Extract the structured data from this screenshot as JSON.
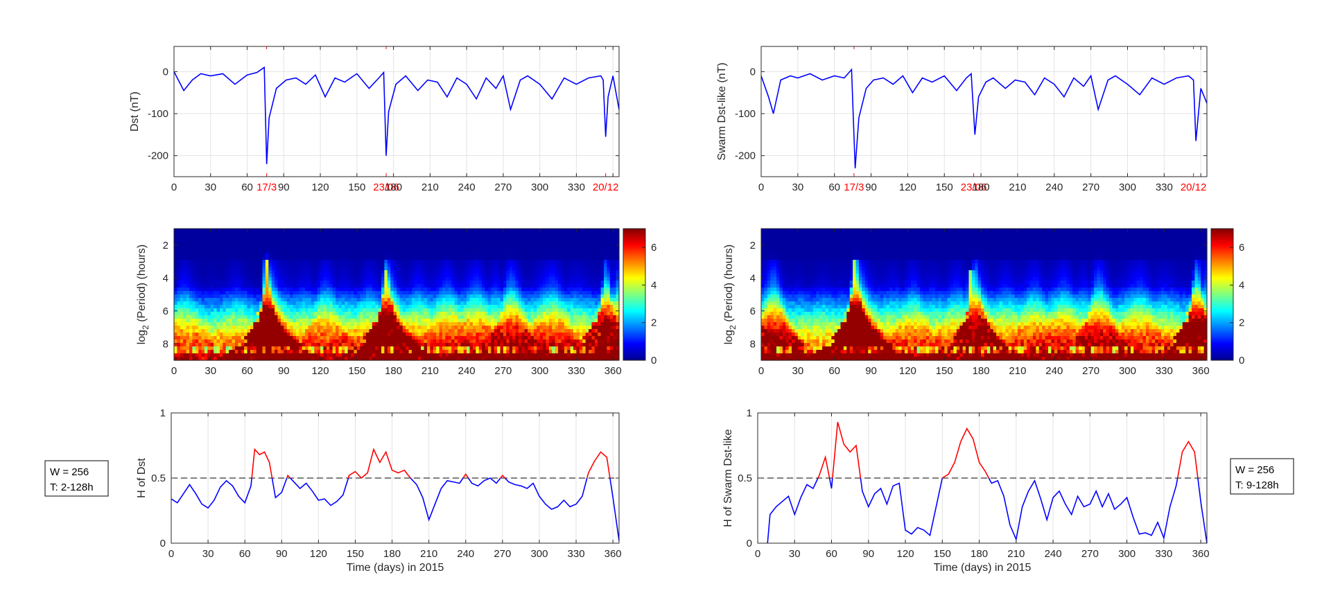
{
  "chart_data": [
    {
      "type": "line",
      "panel": "dst-timeseries",
      "ylabel": "Dst (nT)",
      "xlim": [
        0,
        365
      ],
      "ylim": [
        -250,
        60
      ],
      "xticks": [
        "0",
        "30",
        "60",
        "90",
        "120",
        "150",
        "180",
        "210",
        "240",
        "270",
        "300",
        "330",
        "360"
      ],
      "yticks": [
        "0",
        "-100",
        "-200"
      ],
      "event_labels": [
        "17/3",
        "23/06",
        "20/12"
      ],
      "event_days": [
        76,
        174,
        354
      ],
      "color": "#0000ff",
      "event_color": "#ff0000",
      "series": [
        {
          "x": [
            0,
            8,
            15,
            22,
            30,
            40,
            50,
            60,
            68,
            74,
            76,
            78,
            84,
            92,
            100,
            108,
            116,
            124,
            132,
            140,
            150,
            160,
            168,
            172,
            174,
            176,
            182,
            190,
            200,
            208,
            216,
            224,
            232,
            240,
            248,
            256,
            264,
            270,
            276,
            284,
            290,
            300,
            310,
            320,
            330,
            340,
            350,
            352,
            354,
            356,
            360,
            365
          ],
          "y": [
            0,
            -45,
            -20,
            -5,
            -10,
            -5,
            -30,
            -8,
            -2,
            10,
            -220,
            -110,
            -40,
            -20,
            -15,
            -30,
            -8,
            -60,
            -15,
            -25,
            -5,
            -40,
            -15,
            -2,
            -200,
            -95,
            -30,
            -10,
            -45,
            -20,
            -25,
            -60,
            -15,
            -30,
            -65,
            -15,
            -40,
            -10,
            -90,
            -20,
            -10,
            -30,
            -65,
            -15,
            -30,
            -15,
            -10,
            -20,
            -155,
            -60,
            -10,
            -90
          ]
        }
      ]
    },
    {
      "type": "line",
      "panel": "swarm-timeseries",
      "ylabel": "Swarm Dst-like (nT)",
      "xlim": [
        0,
        365
      ],
      "ylim": [
        -250,
        60
      ],
      "xticks": [
        "0",
        "30",
        "60",
        "90",
        "120",
        "150",
        "180",
        "210",
        "240",
        "270",
        "300",
        "330",
        "360"
      ],
      "yticks": [
        "0",
        "-100",
        "-200"
      ],
      "event_labels": [
        "17/3",
        "23/06",
        "20/12"
      ],
      "event_days": [
        76,
        174,
        354
      ],
      "color": "#0000ff",
      "event_color": "#ff0000",
      "series": [
        {
          "x": [
            0,
            6,
            10,
            16,
            24,
            30,
            40,
            50,
            60,
            68,
            74,
            77,
            80,
            86,
            92,
            100,
            108,
            116,
            124,
            132,
            140,
            150,
            160,
            168,
            172,
            175,
            178,
            184,
            190,
            200,
            208,
            216,
            224,
            232,
            240,
            248,
            256,
            264,
            270,
            276,
            284,
            290,
            300,
            310,
            320,
            330,
            340,
            350,
            354,
            356,
            360,
            365
          ],
          "y": [
            -10,
            -60,
            -100,
            -20,
            -10,
            -15,
            -5,
            -20,
            -10,
            -15,
            5,
            -230,
            -110,
            -40,
            -20,
            -15,
            -30,
            -10,
            -50,
            -15,
            -25,
            -10,
            -45,
            -15,
            -5,
            -150,
            -60,
            -25,
            -15,
            -40,
            -20,
            -25,
            -55,
            -15,
            -30,
            -60,
            -15,
            -35,
            -10,
            -90,
            -20,
            -10,
            -30,
            -55,
            -15,
            -30,
            -15,
            -10,
            -20,
            -165,
            -40,
            -75
          ]
        }
      ]
    },
    {
      "type": "heatmap",
      "panel": "dst-wavelet",
      "ylabel": "log2 (Period) (hours)",
      "xlim": [
        0,
        365
      ],
      "ylim": [
        1,
        9
      ],
      "y_reversed": true,
      "xticks": [
        "0",
        "30",
        "60",
        "90",
        "120",
        "150",
        "180",
        "210",
        "240",
        "270",
        "300",
        "330",
        "360"
      ],
      "yticks": [
        "2",
        "4",
        "6",
        "8"
      ],
      "colorbar_ticks": [
        "0",
        "2",
        "4",
        "6"
      ],
      "colorbar_range": [
        0,
        7
      ],
      "colormap": "jet",
      "storm_peaks": [
        {
          "day": 76,
          "power": 7,
          "min_log2_period": 2.5
        },
        {
          "day": 174,
          "power": 6.5,
          "min_log2_period": 3.5
        },
        {
          "day": 355,
          "power": 6,
          "min_log2_period": 4.5
        }
      ]
    },
    {
      "type": "heatmap",
      "panel": "swarm-wavelet",
      "ylabel": "log2 (Period) (hours)",
      "xlim": [
        0,
        365
      ],
      "ylim": [
        1,
        9
      ],
      "y_reversed": true,
      "xticks": [
        "0",
        "30",
        "60",
        "90",
        "120",
        "150",
        "180",
        "210",
        "240",
        "270",
        "300",
        "330",
        "360"
      ],
      "yticks": [
        "2",
        "4",
        "6",
        "8"
      ],
      "colorbar_ticks": [
        "0",
        "2",
        "4",
        "6"
      ],
      "colorbar_range": [
        0,
        7
      ],
      "colormap": "jet",
      "storm_peaks": [
        {
          "day": 77,
          "power": 7,
          "min_log2_period": 3
        },
        {
          "day": 172,
          "power": 6.5,
          "min_log2_period": 3.5
        },
        {
          "day": 356,
          "power": 6,
          "min_log2_period": 4.5
        }
      ]
    },
    {
      "type": "line",
      "panel": "dst-hurst",
      "ylabel": "H of Dst",
      "xlabel": "Time (days) in 2015",
      "xlim": [
        0,
        365
      ],
      "ylim": [
        0,
        1
      ],
      "xticks": [
        "0",
        "30",
        "60",
        "90",
        "120",
        "150",
        "180",
        "210",
        "240",
        "270",
        "300",
        "330",
        "360"
      ],
      "yticks": [
        "0",
        "0.5",
        "1"
      ],
      "threshold": 0.5,
      "below_color": "#0000ff",
      "above_color": "#ff0000",
      "series": [
        {
          "x": [
            0,
            5,
            10,
            15,
            20,
            25,
            30,
            35,
            40,
            45,
            50,
            55,
            60,
            65,
            68,
            72,
            76,
            80,
            85,
            90,
            95,
            100,
            105,
            110,
            115,
            120,
            125,
            130,
            135,
            140,
            145,
            150,
            155,
            160,
            165,
            170,
            175,
            180,
            185,
            190,
            195,
            200,
            205,
            210,
            215,
            220,
            225,
            230,
            235,
            240,
            245,
            250,
            255,
            260,
            265,
            270,
            275,
            280,
            285,
            290,
            295,
            300,
            305,
            310,
            315,
            320,
            325,
            330,
            335,
            340,
            345,
            350,
            355,
            360,
            365
          ],
          "y": [
            0.34,
            0.31,
            0.38,
            0.45,
            0.38,
            0.3,
            0.27,
            0.33,
            0.43,
            0.48,
            0.44,
            0.36,
            0.31,
            0.44,
            0.72,
            0.68,
            0.7,
            0.62,
            0.35,
            0.39,
            0.52,
            0.47,
            0.42,
            0.46,
            0.4,
            0.33,
            0.34,
            0.29,
            0.32,
            0.37,
            0.52,
            0.55,
            0.5,
            0.54,
            0.72,
            0.62,
            0.7,
            0.56,
            0.54,
            0.56,
            0.5,
            0.45,
            0.35,
            0.18,
            0.3,
            0.42,
            0.48,
            0.47,
            0.46,
            0.53,
            0.46,
            0.44,
            0.48,
            0.5,
            0.46,
            0.52,
            0.47,
            0.45,
            0.44,
            0.42,
            0.46,
            0.36,
            0.3,
            0.26,
            0.28,
            0.33,
            0.28,
            0.3,
            0.36,
            0.54,
            0.63,
            0.7,
            0.66,
            0.35,
            0.02
          ]
        }
      ]
    },
    {
      "type": "line",
      "panel": "swarm-hurst",
      "ylabel": "H of Swarm Dst-like",
      "xlabel": "Time (days) in 2015",
      "xlim": [
        0,
        365
      ],
      "ylim": [
        0,
        1
      ],
      "xticks": [
        "0",
        "30",
        "60",
        "90",
        "120",
        "150",
        "180",
        "210",
        "240",
        "270",
        "300",
        "330",
        "360"
      ],
      "yticks": [
        "0",
        "0.5",
        "1"
      ],
      "threshold": 0.5,
      "below_color": "#0000ff",
      "above_color": "#ff0000",
      "series": [
        {
          "x": [
            8,
            10,
            15,
            20,
            25,
            30,
            35,
            40,
            45,
            50,
            55,
            60,
            65,
            70,
            75,
            80,
            85,
            90,
            95,
            100,
            105,
            110,
            115,
            120,
            125,
            130,
            135,
            140,
            145,
            150,
            155,
            160,
            165,
            170,
            175,
            180,
            185,
            190,
            195,
            200,
            205,
            210,
            215,
            220,
            225,
            230,
            235,
            240,
            245,
            250,
            255,
            260,
            265,
            270,
            275,
            280,
            285,
            290,
            295,
            300,
            305,
            310,
            315,
            320,
            325,
            330,
            335,
            340,
            345,
            350,
            355,
            360,
            365
          ],
          "y": [
            0.0,
            0.22,
            0.28,
            0.32,
            0.36,
            0.22,
            0.35,
            0.45,
            0.42,
            0.52,
            0.66,
            0.42,
            0.93,
            0.76,
            0.7,
            0.75,
            0.4,
            0.28,
            0.38,
            0.42,
            0.3,
            0.44,
            0.46,
            0.1,
            0.07,
            0.12,
            0.1,
            0.06,
            0.28,
            0.5,
            0.53,
            0.62,
            0.78,
            0.88,
            0.8,
            0.62,
            0.55,
            0.46,
            0.48,
            0.36,
            0.14,
            0.03,
            0.28,
            0.4,
            0.48,
            0.34,
            0.18,
            0.35,
            0.4,
            0.3,
            0.22,
            0.36,
            0.28,
            0.3,
            0.4,
            0.28,
            0.38,
            0.26,
            0.3,
            0.35,
            0.2,
            0.07,
            0.08,
            0.06,
            0.16,
            0.04,
            0.28,
            0.44,
            0.7,
            0.78,
            0.7,
            0.32,
            0.0
          ]
        }
      ]
    }
  ],
  "annotations": {
    "left_box": {
      "line1": "W = 256",
      "line2": "T: 2-128h"
    },
    "right_box": {
      "line1": "W = 256",
      "line2": "T: 9-128h"
    }
  }
}
